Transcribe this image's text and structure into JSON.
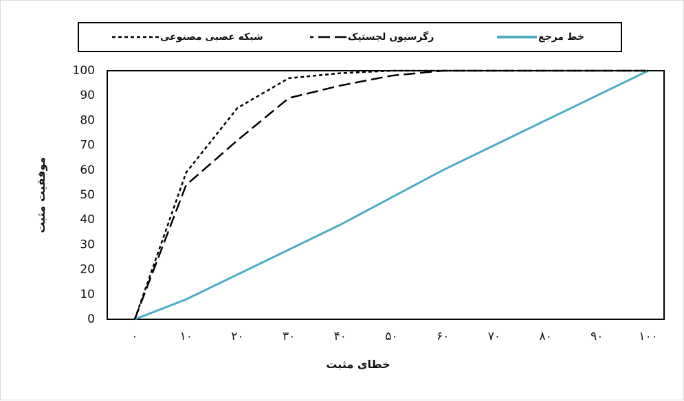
{
  "chart_data": {
    "type": "line",
    "xlabel": "خطای مثبت",
    "ylabel": "موفقیت مثبت",
    "x": [
      0,
      10,
      20,
      30,
      40,
      50,
      60,
      70,
      80,
      90,
      100
    ],
    "x_tick_labels": [
      "۰",
      "۱۰",
      "۲۰",
      "۳۰",
      "۴۰",
      "۵۰",
      "۶۰",
      "۷۰",
      "۸۰",
      "۹۰",
      "۱۰۰"
    ],
    "y_tick_labels": [
      "0",
      "10",
      "20",
      "30",
      "40",
      "50",
      "60",
      "70",
      "80",
      "90",
      "100"
    ],
    "xlim": [
      0,
      100
    ],
    "ylim": [
      0,
      100
    ],
    "grid": false,
    "legend_position": "top",
    "series": [
      {
        "name": "شبکه عصبی مصنوعی",
        "style": "dotted",
        "color": "#000000",
        "values": [
          0,
          59,
          85,
          97,
          99,
          100,
          100,
          100,
          100,
          100,
          100
        ]
      },
      {
        "name": "رگرسیون لجستیک",
        "style": "dashed",
        "color": "#000000",
        "values": [
          0,
          54,
          72,
          89,
          94,
          98,
          100,
          100,
          100,
          100,
          100
        ]
      },
      {
        "name": "خط مرجع",
        "style": "solid",
        "color": "#4bacc6",
        "values": [
          0,
          8,
          18,
          28,
          38,
          49,
          60,
          70,
          80,
          90,
          100
        ]
      }
    ]
  }
}
